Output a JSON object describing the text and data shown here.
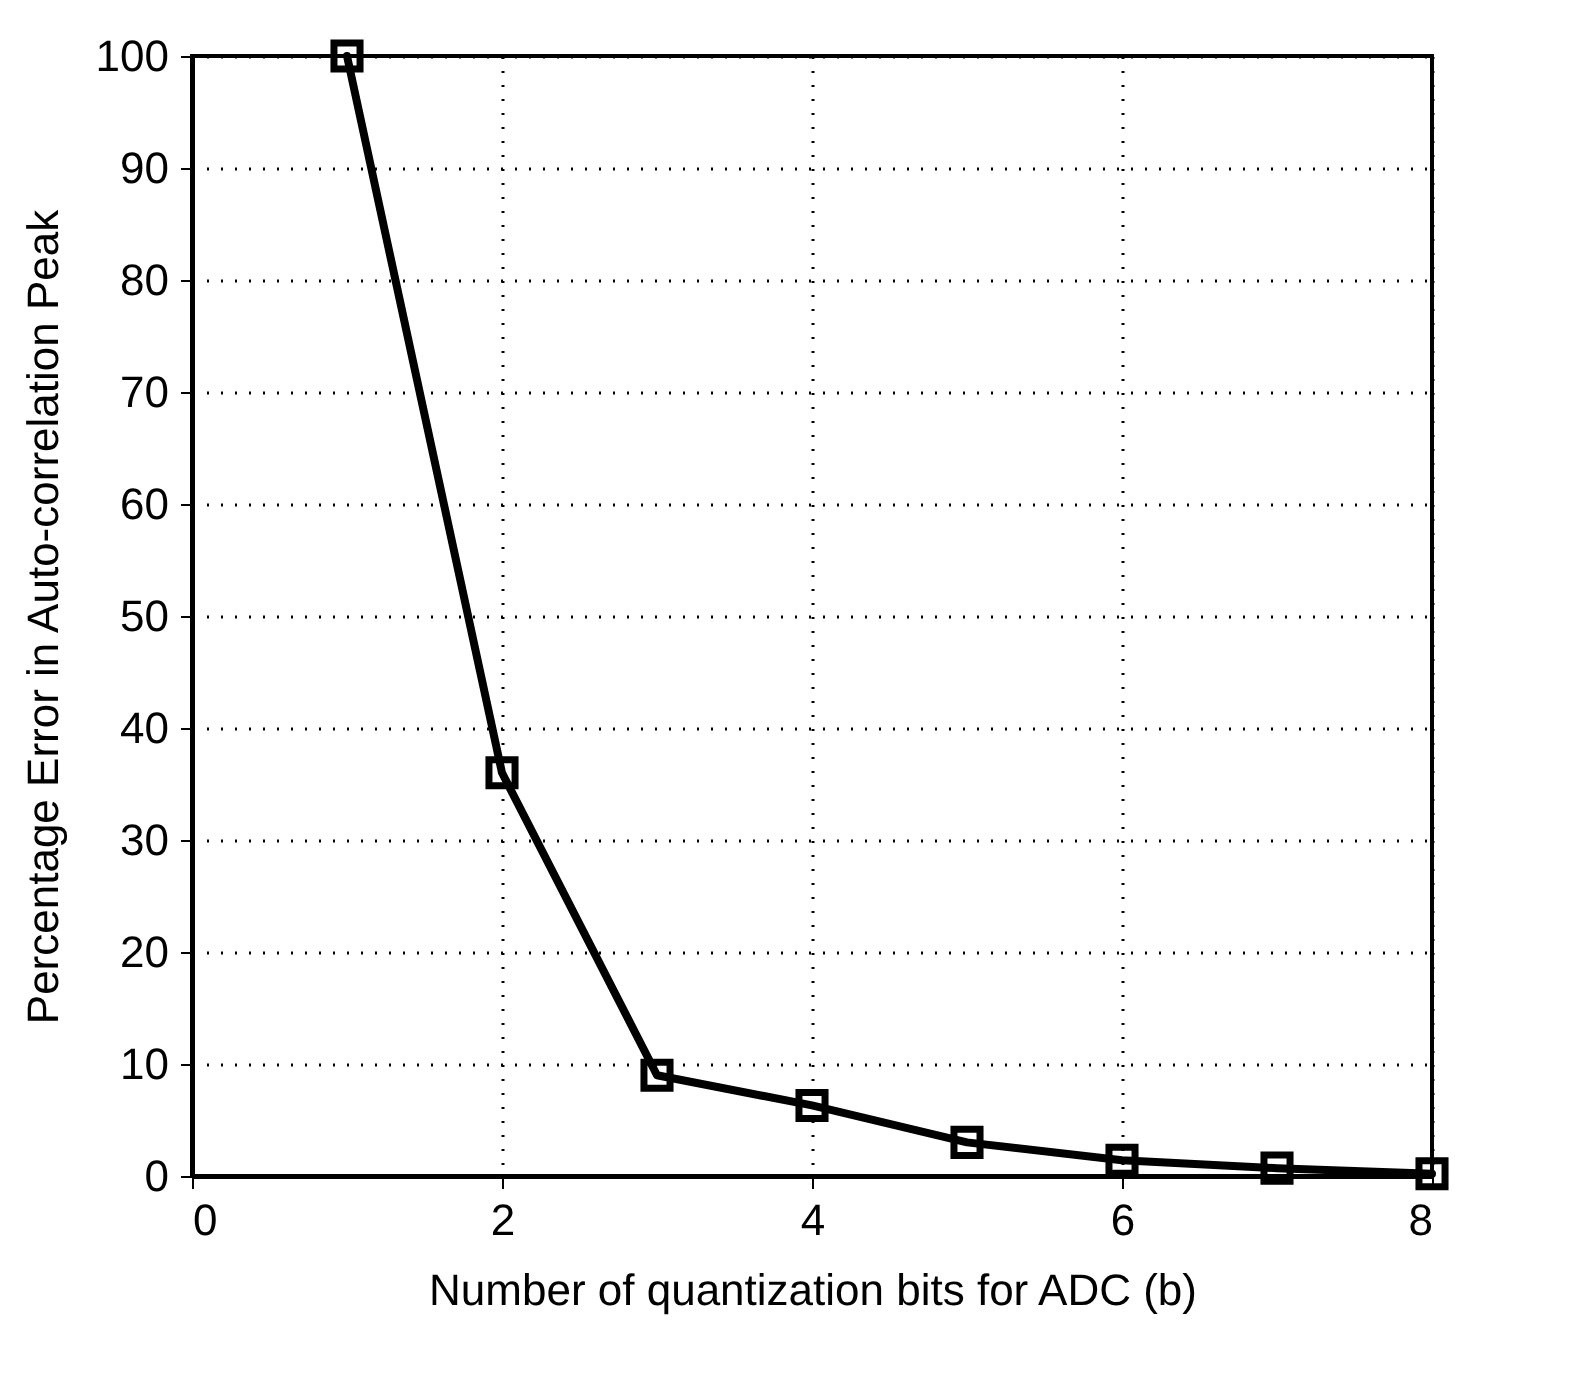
{
  "chart_data": {
    "type": "line",
    "xlabel": "Number of quantization bits for ADC (b)",
    "ylabel": "Percentage Error in Auto-correlation Peak",
    "x": [
      1,
      2,
      3,
      4,
      5,
      6,
      7,
      8
    ],
    "series": [
      {
        "color": "#000000",
        "values": [
          100,
          36,
          9,
          6.3,
          3,
          1.4,
          0.7,
          0.2
        ]
      }
    ],
    "xlim": [
      0,
      8
    ],
    "xticks": [
      0,
      2,
      4,
      6,
      8
    ],
    "ylim": [
      0,
      100
    ],
    "yticks": [
      0,
      10,
      20,
      30,
      40,
      50,
      60,
      70,
      80,
      90,
      100
    ],
    "grid": true,
    "marker": "square",
    "line_style": "solid"
  }
}
